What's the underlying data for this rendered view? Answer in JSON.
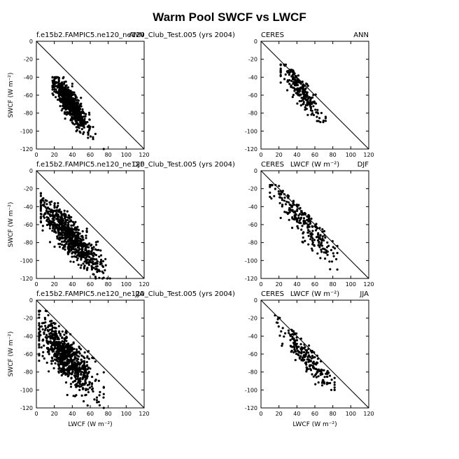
{
  "figure": {
    "title": "Warm Pool SWCF vs LWCF"
  },
  "chart_data": [
    {
      "type": "scatter",
      "left_label": "f.e15b2.FAMPIC5.ne120_ne120_Club_Test.005 (yrs 2004)",
      "right_label": "ANN",
      "center_label": "",
      "xlabel": "",
      "ylabel": "SWCF (W m⁻²)",
      "xlim": [
        0,
        120
      ],
      "ylim": [
        -120,
        0
      ],
      "xticks": [
        0,
        20,
        40,
        60,
        80,
        100,
        120
      ],
      "yticks": [
        0,
        -20,
        -40,
        -60,
        -80,
        -100,
        -120
      ],
      "reference_line": "y = -x",
      "cloud": {
        "n": 700,
        "x_mean": 38,
        "x_sd": 9,
        "x_min": 18,
        "x_max": 75,
        "slope": -1.25,
        "intercept": -22,
        "noise": 8,
        "y_min": -120,
        "y_max": -40,
        "seed": 11
      }
    },
    {
      "type": "scatter",
      "left_label": "CERES",
      "right_label": "ANN",
      "center_label": "",
      "xlabel": "",
      "ylabel": "",
      "xlim": [
        0,
        120
      ],
      "ylim": [
        -120,
        0
      ],
      "xticks": [
        0,
        20,
        40,
        60,
        80,
        100,
        120
      ],
      "yticks": [
        0,
        -20,
        -40,
        -60,
        -80,
        -100,
        -120
      ],
      "reference_line": "y = -x",
      "cloud": {
        "n": 230,
        "x_mean": 45,
        "x_sd": 12,
        "x_min": 22,
        "x_max": 72,
        "slope": -1.2,
        "intercept": -2,
        "noise": 7,
        "y_min": -90,
        "y_max": -26,
        "seed": 23
      }
    },
    {
      "type": "scatter",
      "left_label": "f.e15b2.FAMPIC5.ne120_ne120_Club_Test.005 (yrs 2004)",
      "right_label": "DJF",
      "center_label": "",
      "xlabel": "",
      "ylabel": "SWCF (W m⁻²)",
      "xlim": [
        0,
        120
      ],
      "ylim": [
        -120,
        0
      ],
      "xticks": [
        0,
        20,
        40,
        60,
        80,
        100,
        120
      ],
      "yticks": [
        0,
        -20,
        -40,
        -60,
        -80,
        -100,
        -120
      ],
      "reference_line": "y = -x",
      "cloud": {
        "n": 800,
        "x_mean": 38,
        "x_sd": 16,
        "x_min": 5,
        "x_max": 82,
        "slope": -1.0,
        "intercept": -35,
        "noise": 10,
        "y_min": -120,
        "y_max": -25,
        "seed": 37
      }
    },
    {
      "type": "scatter",
      "left_label": "CERES",
      "right_label": "DJF",
      "center_label": "LWCF (W m⁻²)",
      "xlabel": "",
      "ylabel": "",
      "xlim": [
        0,
        120
      ],
      "ylim": [
        -120,
        0
      ],
      "xticks": [
        0,
        20,
        40,
        60,
        80,
        100,
        120
      ],
      "yticks": [
        0,
        -20,
        -40,
        -60,
        -80,
        -100,
        -120
      ],
      "reference_line": "y = -x",
      "cloud": {
        "n": 240,
        "x_mean": 48,
        "x_sd": 20,
        "x_min": 10,
        "x_max": 85,
        "slope": -1.05,
        "intercept": -8,
        "noise": 9,
        "y_min": -110,
        "y_max": -16,
        "seed": 53
      }
    },
    {
      "type": "scatter",
      "left_label": "f.e15b2.FAMPIC5.ne120_ne120_Club_Test.005 (yrs 2004)",
      "right_label": "JJA",
      "center_label": "",
      "xlabel": "LWCF (W m⁻²)",
      "ylabel": "SWCF (W m⁻²)",
      "xlim": [
        0,
        120
      ],
      "ylim": [
        -120,
        0
      ],
      "xticks": [
        0,
        20,
        40,
        60,
        80,
        100,
        120
      ],
      "yticks": [
        0,
        -20,
        -40,
        -60,
        -80,
        -100,
        -120
      ],
      "reference_line": "y = -x",
      "cloud": {
        "n": 800,
        "x_mean": 33,
        "x_sd": 16,
        "x_min": 3,
        "x_max": 75,
        "slope": -1.0,
        "intercept": -30,
        "noise": 13,
        "y_min": -120,
        "y_max": -12,
        "seed": 71
      }
    },
    {
      "type": "scatter",
      "left_label": "CERES",
      "right_label": "JJA",
      "center_label": "LWCF (W m⁻²)",
      "xlabel": "LWCF (W m⁻²)",
      "ylabel": "",
      "xlim": [
        0,
        120
      ],
      "ylim": [
        -120,
        0
      ],
      "xticks": [
        0,
        20,
        40,
        60,
        80,
        100,
        120
      ],
      "yticks": [
        0,
        -20,
        -40,
        -60,
        -80,
        -100,
        -120
      ],
      "reference_line": "y = -x",
      "cloud": {
        "n": 220,
        "x_mean": 52,
        "x_sd": 16,
        "x_min": 10,
        "x_max": 82,
        "slope": -1.05,
        "intercept": -10,
        "noise": 8,
        "y_min": -100,
        "y_max": -17,
        "seed": 89
      }
    }
  ]
}
